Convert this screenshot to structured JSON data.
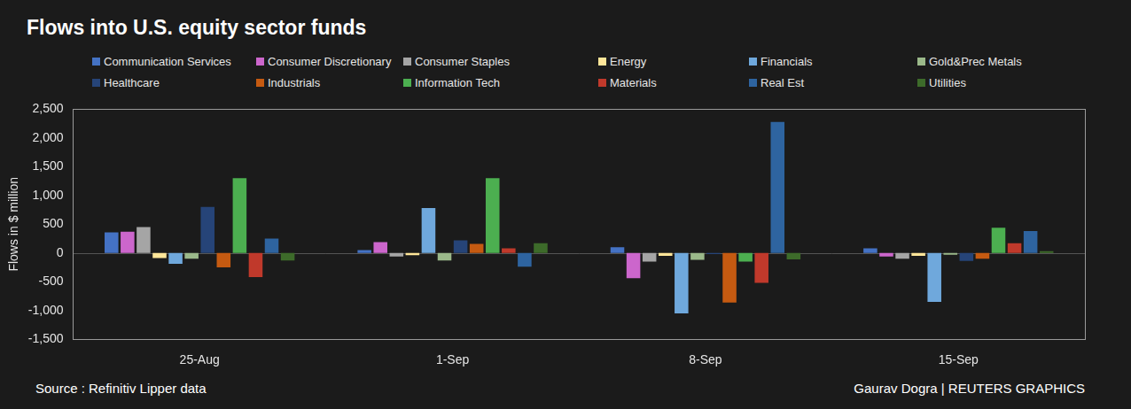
{
  "chart_data": {
    "type": "bar",
    "title": "Flows into U.S. equity sector funds",
    "y_label": "Flows in $ million",
    "annotations": [
      "Source : Refinitiv Lipper data",
      "Gaurav Dogra | REUTERS GRAPHICS"
    ],
    "categories": [
      "25-Aug",
      "1-Sep",
      "8-Sep",
      "15-Sep"
    ],
    "series": [
      {
        "name": "Communication Services",
        "color": "#4472c4",
        "values": [
          360,
          50,
          100,
          80
        ]
      },
      {
        "name": "Consumer Discretionary",
        "color": "#cc66cc",
        "values": [
          370,
          190,
          -440,
          -60
        ]
      },
      {
        "name": "Consumer Staples",
        "color": "#a5a5a5",
        "values": [
          450,
          -60,
          -150,
          -100
        ]
      },
      {
        "name": "Energy",
        "color": "#ffe699",
        "values": [
          -90,
          -40,
          -50,
          -50
        ]
      },
      {
        "name": "Financials",
        "color": "#6fa8dc",
        "values": [
          -190,
          780,
          -1050,
          -850
        ]
      },
      {
        "name": "Gold&Prec Metals",
        "color": "#9bb98a",
        "values": [
          -100,
          -130,
          -120,
          -30
        ]
      },
      {
        "name": "Healthcare",
        "color": "#264478",
        "values": [
          800,
          220,
          -20,
          -140
        ]
      },
      {
        "name": "Industrials",
        "color": "#c55a11",
        "values": [
          -250,
          160,
          -860,
          -100
        ]
      },
      {
        "name": "Information Tech",
        "color": "#4caf50",
        "values": [
          1300,
          1300,
          -150,
          440
        ]
      },
      {
        "name": "Materials",
        "color": "#c0392b",
        "values": [
          -420,
          80,
          -520,
          170
        ]
      },
      {
        "name": "Real Est",
        "color": "#2e64a0",
        "values": [
          250,
          -240,
          2280,
          380
        ]
      },
      {
        "name": "Utilities",
        "color": "#3d6b2a",
        "values": [
          -130,
          170,
          -110,
          30
        ]
      }
    ],
    "ylim": [
      -1500,
      2500
    ],
    "yticks": [
      {
        "value": -1500,
        "label": "-1,500"
      },
      {
        "value": -1000,
        "label": "-1,000"
      },
      -500,
      0,
      500,
      {
        "value": 1000,
        "label": "1,000"
      },
      {
        "value": 1500,
        "label": "1,500"
      },
      {
        "value": 2000,
        "label": "2,000"
      },
      {
        "value": 2500,
        "label": "2,500"
      }
    ],
    "grid": false,
    "legend": "top"
  }
}
